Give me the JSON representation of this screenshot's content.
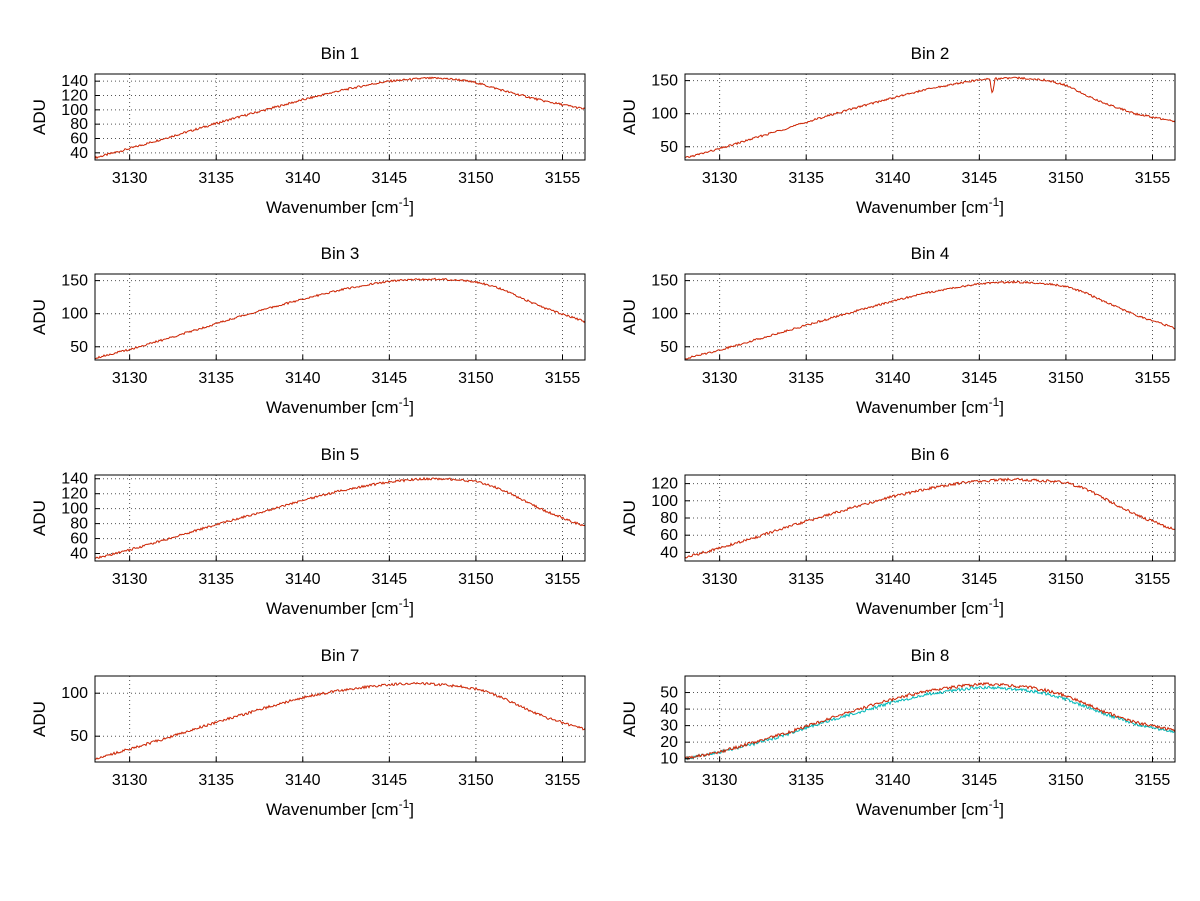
{
  "figure": {
    "background": "#ffffff",
    "line_color": "#cc2200",
    "secondary_line_color": "#00b8b8",
    "grid_color": "#555555",
    "axis_color": "#000000"
  },
  "chart_data": [
    {
      "type": "line",
      "title": "Bin 1",
      "xlabel": "Wavenumber [cm^{-1}]",
      "ylabel": "ADU",
      "xlim": [
        3128,
        3156.3
      ],
      "ylim": [
        30,
        150
      ],
      "xticks": [
        3130,
        3135,
        3140,
        3145,
        3150,
        3155
      ],
      "yticks": [
        40,
        60,
        80,
        100,
        120,
        140
      ],
      "grid": true,
      "series": [
        {
          "name": "spectrum",
          "color": "#cc2200",
          "noise": 1.5,
          "x": [
            3128,
            3130,
            3132,
            3134,
            3136,
            3138,
            3140,
            3142,
            3144,
            3145,
            3146,
            3147,
            3148,
            3149,
            3150,
            3151,
            3152,
            3154,
            3156.3
          ],
          "y": [
            33,
            46,
            60,
            74,
            88,
            101,
            114,
            126,
            136,
            140,
            142,
            144,
            144,
            142,
            138,
            131,
            124,
            112,
            101
          ]
        }
      ]
    },
    {
      "type": "line",
      "title": "Bin 2",
      "xlabel": "Wavenumber [cm^{-1}]",
      "ylabel": "ADU",
      "xlim": [
        3128,
        3156.3
      ],
      "ylim": [
        30,
        160
      ],
      "xticks": [
        3130,
        3135,
        3140,
        3145,
        3150,
        3155
      ],
      "yticks": [
        50,
        100,
        150
      ],
      "grid": true,
      "series": [
        {
          "name": "spectrum",
          "color": "#cc2200",
          "noise": 1.5,
          "x": [
            3128,
            3130,
            3132,
            3134,
            3136,
            3138,
            3140,
            3142,
            3144,
            3145,
            3145.6,
            3145.75,
            3145.9,
            3147,
            3148,
            3149,
            3150,
            3151,
            3152,
            3154,
            3156.3
          ],
          "y": [
            33,
            47,
            63,
            79,
            95,
            110,
            124,
            137,
            147,
            151,
            153,
            128,
            153,
            154,
            153,
            150,
            143,
            130,
            118,
            100,
            88
          ]
        }
      ]
    },
    {
      "type": "line",
      "title": "Bin 3",
      "xlabel": "Wavenumber [cm^{-1}]",
      "ylabel": "ADU",
      "xlim": [
        3128,
        3156.3
      ],
      "ylim": [
        30,
        160
      ],
      "xticks": [
        3130,
        3135,
        3140,
        3145,
        3150,
        3155
      ],
      "yticks": [
        50,
        100,
        150
      ],
      "grid": true,
      "series": [
        {
          "name": "spectrum",
          "color": "#cc2200",
          "noise": 1.5,
          "x": [
            3128,
            3130,
            3132,
            3134,
            3136,
            3138,
            3140,
            3142,
            3144,
            3145,
            3146,
            3147,
            3148,
            3149,
            3150,
            3151,
            3152,
            3154,
            3156.3
          ],
          "y": [
            33,
            46,
            61,
            77,
            93,
            108,
            122,
            135,
            145,
            149,
            151,
            152,
            152,
            151,
            148,
            142,
            131,
            108,
            88
          ]
        }
      ]
    },
    {
      "type": "line",
      "title": "Bin 4",
      "xlabel": "Wavenumber [cm^{-1}]",
      "ylabel": "ADU",
      "xlim": [
        3128,
        3156.3
      ],
      "ylim": [
        30,
        160
      ],
      "xticks": [
        3130,
        3135,
        3140,
        3145,
        3150,
        3155
      ],
      "yticks": [
        50,
        100,
        150
      ],
      "grid": true,
      "series": [
        {
          "name": "spectrum",
          "color": "#cc2200",
          "noise": 1.5,
          "x": [
            3128,
            3130,
            3132,
            3134,
            3136,
            3138,
            3140,
            3142,
            3144,
            3145,
            3146,
            3147,
            3148,
            3149,
            3150,
            3151,
            3152,
            3154,
            3156.3
          ],
          "y": [
            32,
            45,
            60,
            75,
            90,
            105,
            119,
            132,
            141,
            145,
            147,
            148,
            147,
            145,
            141,
            133,
            121,
            98,
            78
          ]
        }
      ]
    },
    {
      "type": "line",
      "title": "Bin 5",
      "xlabel": "Wavenumber [cm^{-1}]",
      "ylabel": "ADU",
      "xlim": [
        3128,
        3156.3
      ],
      "ylim": [
        30,
        145
      ],
      "xticks": [
        3130,
        3135,
        3140,
        3145,
        3150,
        3155
      ],
      "yticks": [
        40,
        60,
        80,
        100,
        120,
        140
      ],
      "grid": true,
      "series": [
        {
          "name": "spectrum",
          "color": "#cc2200",
          "noise": 1.5,
          "x": [
            3128,
            3130,
            3132,
            3134,
            3136,
            3138,
            3140,
            3142,
            3144,
            3145,
            3146,
            3147,
            3148,
            3149,
            3150,
            3151,
            3152,
            3154,
            3156.3
          ],
          "y": [
            33,
            45,
            58,
            72,
            85,
            98,
            111,
            123,
            132,
            136,
            138,
            140,
            140,
            139,
            136,
            130,
            120,
            97,
            76
          ]
        }
      ]
    },
    {
      "type": "line",
      "title": "Bin 6",
      "xlabel": "Wavenumber [cm^{-1}]",
      "ylabel": "ADU",
      "xlim": [
        3128,
        3156.3
      ],
      "ylim": [
        30,
        130
      ],
      "xticks": [
        3130,
        3135,
        3140,
        3145,
        3150,
        3155
      ],
      "yticks": [
        40,
        60,
        80,
        100,
        120
      ],
      "grid": true,
      "series": [
        {
          "name": "spectrum",
          "color": "#cc2200",
          "noise": 1.5,
          "x": [
            3128,
            3130,
            3132,
            3134,
            3136,
            3138,
            3140,
            3142,
            3144,
            3145,
            3146,
            3147,
            3148,
            3149,
            3150,
            3151,
            3152,
            3154,
            3156.3
          ],
          "y": [
            34,
            45,
            57,
            70,
            82,
            94,
            105,
            114,
            121,
            123,
            124,
            125,
            124,
            123,
            121,
            115,
            105,
            84,
            66
          ]
        }
      ]
    },
    {
      "type": "line",
      "title": "Bin 7",
      "xlabel": "Wavenumber [cm^{-1}]",
      "ylabel": "ADU",
      "xlim": [
        3128,
        3156.3
      ],
      "ylim": [
        20,
        120
      ],
      "xticks": [
        3130,
        3135,
        3140,
        3145,
        3150,
        3155
      ],
      "yticks": [
        50,
        100
      ],
      "grid": true,
      "series": [
        {
          "name": "spectrum",
          "color": "#cc2200",
          "noise": 1.5,
          "x": [
            3128,
            3130,
            3132,
            3134,
            3136,
            3138,
            3140,
            3142,
            3144,
            3145,
            3146,
            3147,
            3148,
            3149,
            3150,
            3151,
            3152,
            3154,
            3156.3
          ],
          "y": [
            24,
            35,
            47,
            60,
            72,
            84,
            95,
            103,
            108,
            110,
            111,
            111,
            110,
            108,
            105,
            99,
            90,
            72,
            58
          ]
        }
      ]
    },
    {
      "type": "line",
      "title": "Bin 8",
      "xlabel": "Wavenumber [cm^{-1}]",
      "ylabel": "ADU",
      "xlim": [
        3128,
        3156.3
      ],
      "ylim": [
        8,
        60
      ],
      "xticks": [
        3130,
        3135,
        3140,
        3145,
        3150,
        3155
      ],
      "yticks": [
        10,
        20,
        30,
        40,
        50
      ],
      "grid": true,
      "series": [
        {
          "name": "spectrum-cyan",
          "color": "#00b8b8",
          "noise": 0.9,
          "x": [
            3128,
            3130,
            3132,
            3134,
            3136,
            3138,
            3140,
            3142,
            3144,
            3145,
            3146,
            3147,
            3148,
            3149,
            3150,
            3151,
            3152,
            3154,
            3156.3
          ],
          "y": [
            10,
            14,
            19,
            25,
            32,
            38,
            44,
            49,
            52,
            53,
            53,
            52,
            51,
            49,
            46,
            42,
            38,
            31,
            26
          ]
        },
        {
          "name": "spectrum-red",
          "color": "#cc2200",
          "noise": 0.9,
          "x": [
            3128,
            3130,
            3132,
            3134,
            3136,
            3138,
            3140,
            3142,
            3144,
            3145,
            3146,
            3147,
            3148,
            3149,
            3150,
            3151,
            3152,
            3154,
            3156.3
          ],
          "y": [
            10,
            14,
            20,
            26,
            33,
            40,
            46,
            51,
            54,
            55,
            55,
            54,
            53,
            51,
            48,
            44,
            39,
            32,
            27
          ]
        }
      ]
    }
  ]
}
